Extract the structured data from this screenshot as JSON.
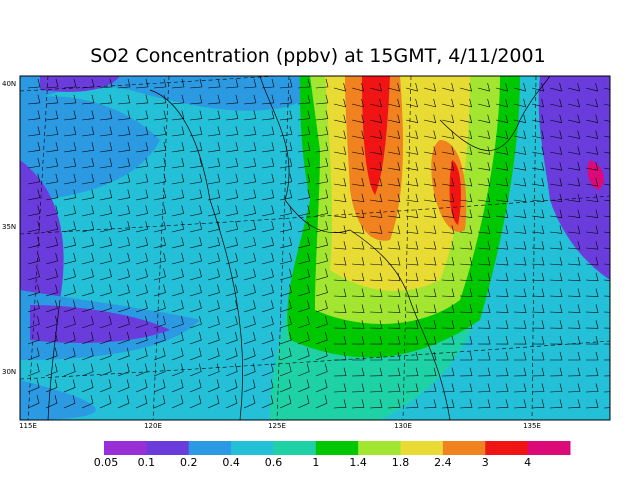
{
  "title": "SO2 Concentration (ppbv) at 15GMT, 4/11/2001",
  "map": {
    "lat_labels": [
      "40N",
      "35N",
      "30N"
    ],
    "lon_labels": [
      "115E",
      "120E",
      "125E",
      "130E",
      "135E"
    ]
  },
  "colorbar": {
    "labels": [
      "0.05",
      "0.1",
      "0.2",
      "0.4",
      "0.6",
      "1",
      "1.4",
      "1.8",
      "2.4",
      "3",
      "4"
    ],
    "colors": [
      "#9a2fd8",
      "#6a3cdc",
      "#2c9ae2",
      "#24c0d8",
      "#1fd2a6",
      "#00c800",
      "#a2e632",
      "#e8dc34",
      "#f08220",
      "#f01414",
      "#dc0a78"
    ]
  }
}
